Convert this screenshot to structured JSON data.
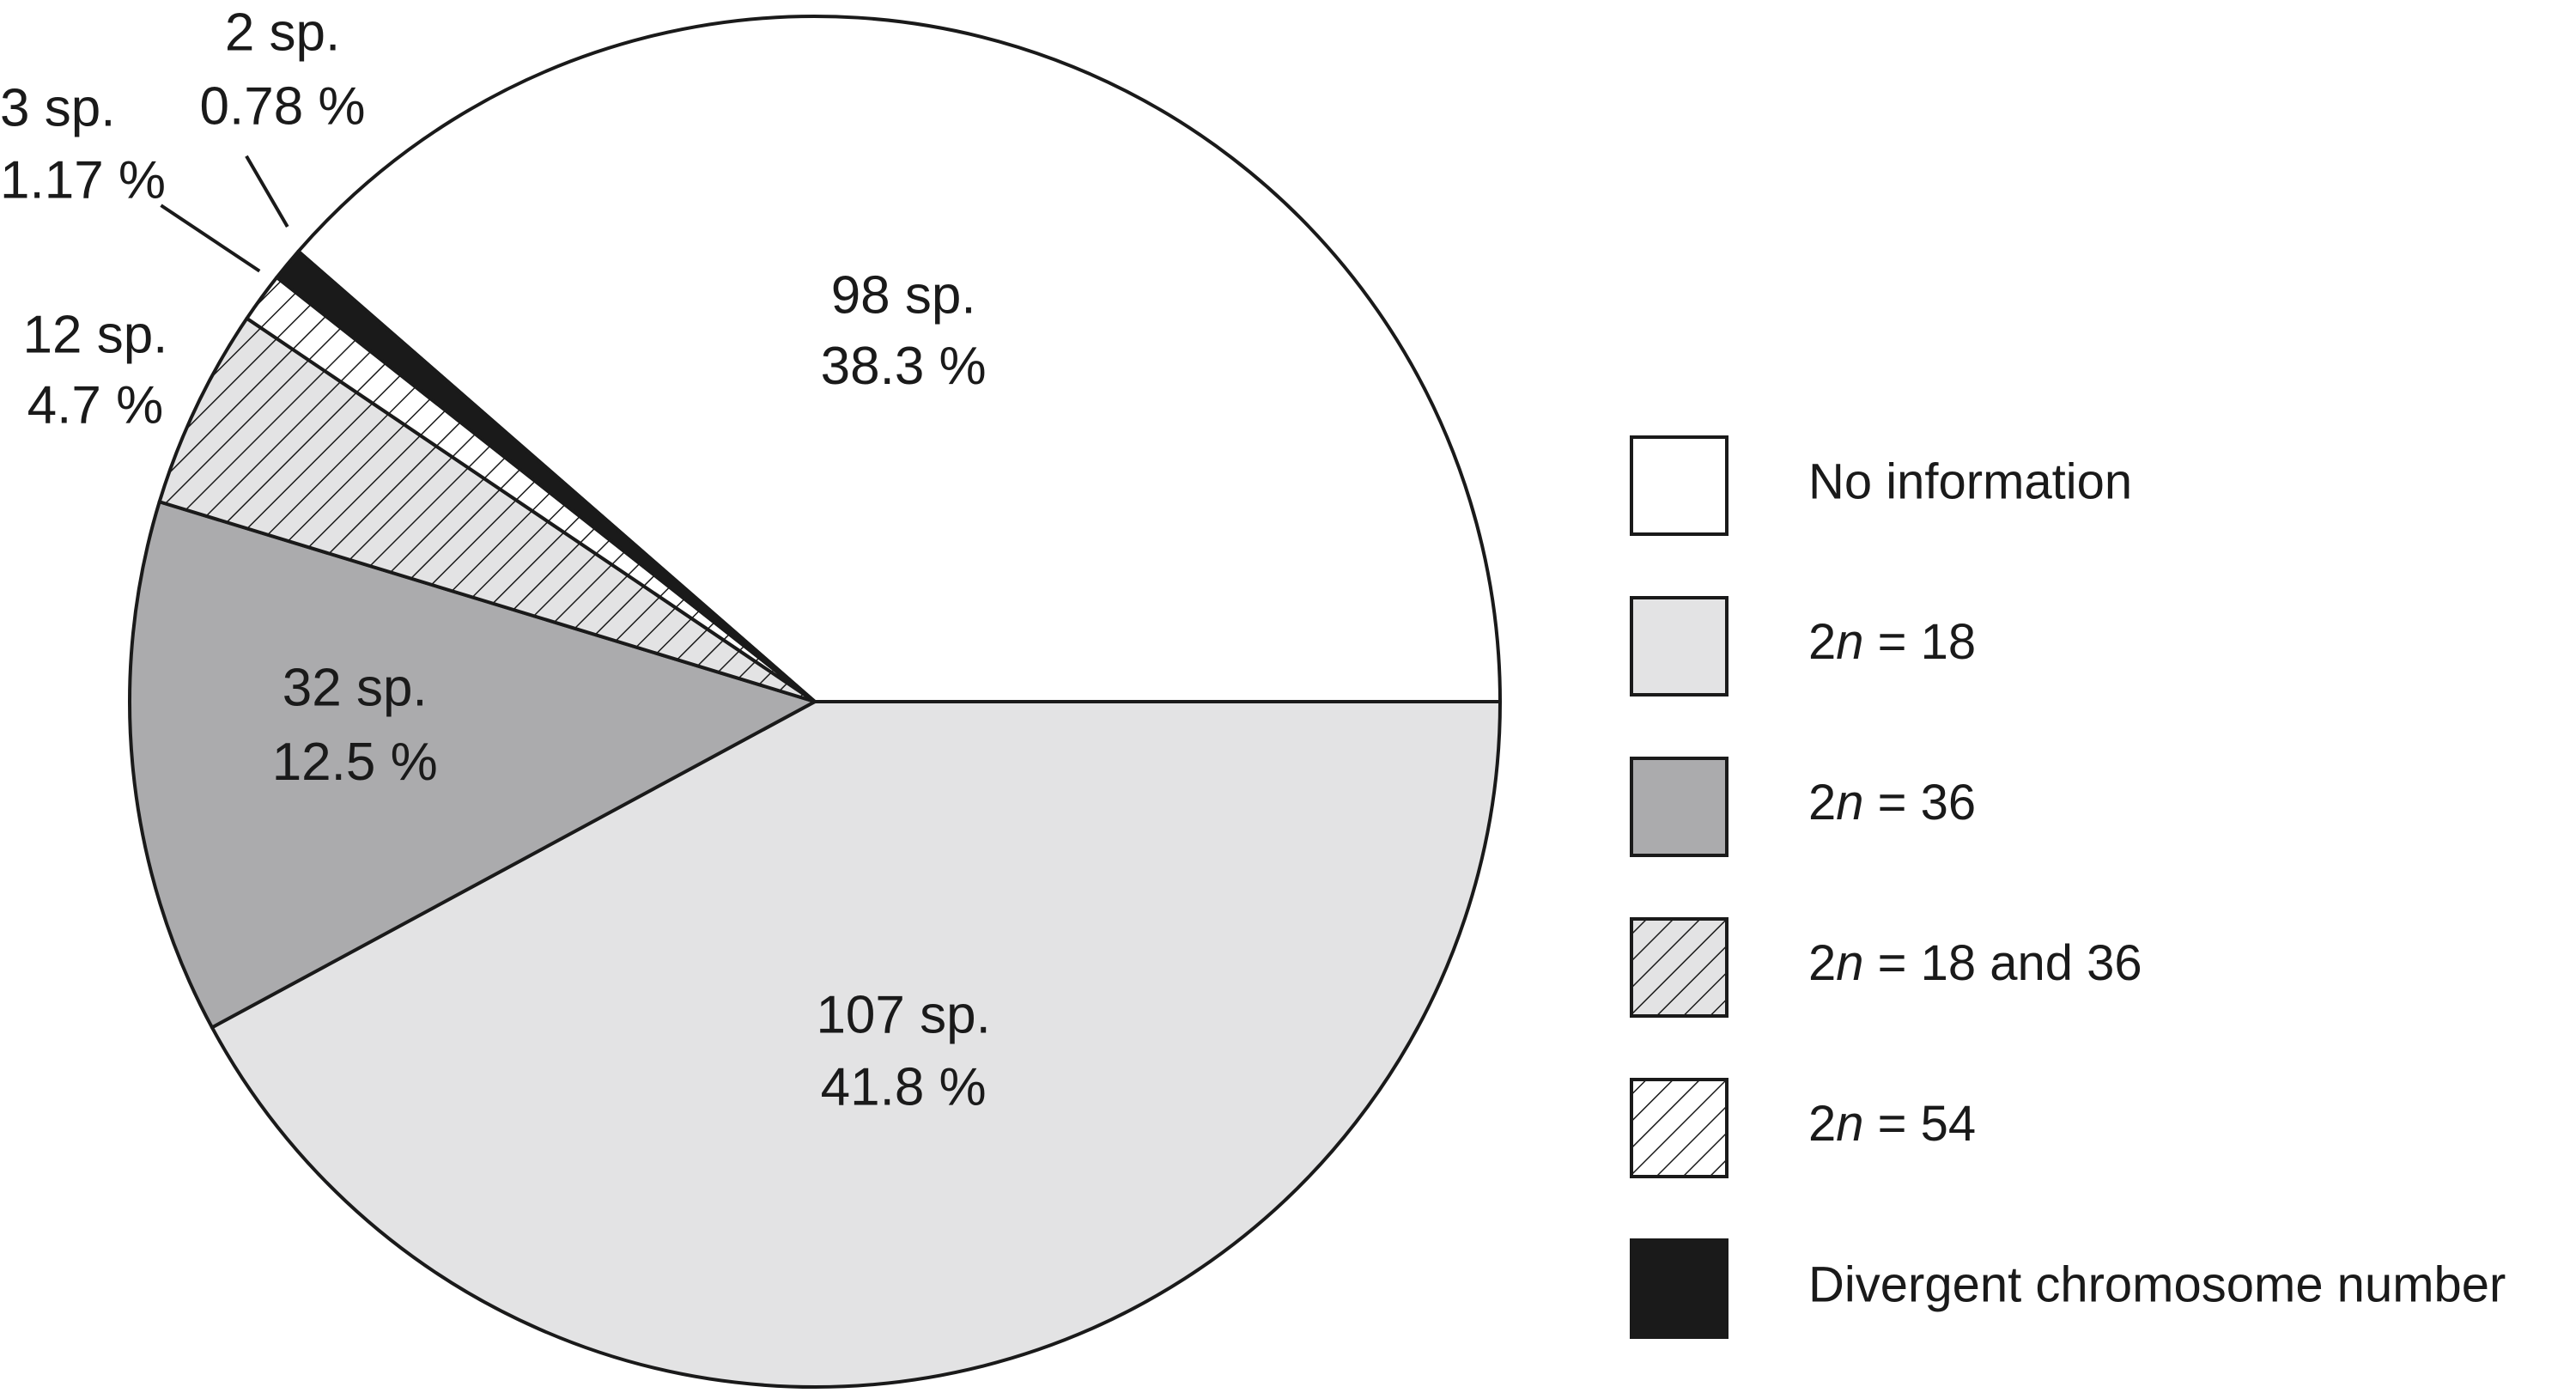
{
  "chart_data": {
    "type": "pie",
    "categories": [
      "No information",
      "2n = 18",
      "2n = 36",
      "2n = 18 and 36",
      "2n = 54",
      "Divergent chromosome number"
    ],
    "values": [
      38.3,
      41.8,
      12.5,
      4.7,
      1.17,
      0.78
    ],
    "value_labels": [
      "38.3 %",
      "41.8 %",
      "12.5 %",
      "4.7 %",
      "1.17 %",
      "0.78 %"
    ],
    "counts": [
      98,
      107,
      32,
      12,
      3,
      2
    ],
    "count_labels": [
      "98 sp.",
      "107 sp.",
      "32 sp.",
      "12 sp.",
      "3 sp.",
      "2 sp."
    ],
    "colors": [
      "#ffffff",
      "#e3e3e4",
      "#ababad",
      "#e3e3e4",
      "#ffffff",
      "#1a1a1a"
    ],
    "hatch": [
      false,
      false,
      false,
      true,
      true,
      false
    ]
  }
}
